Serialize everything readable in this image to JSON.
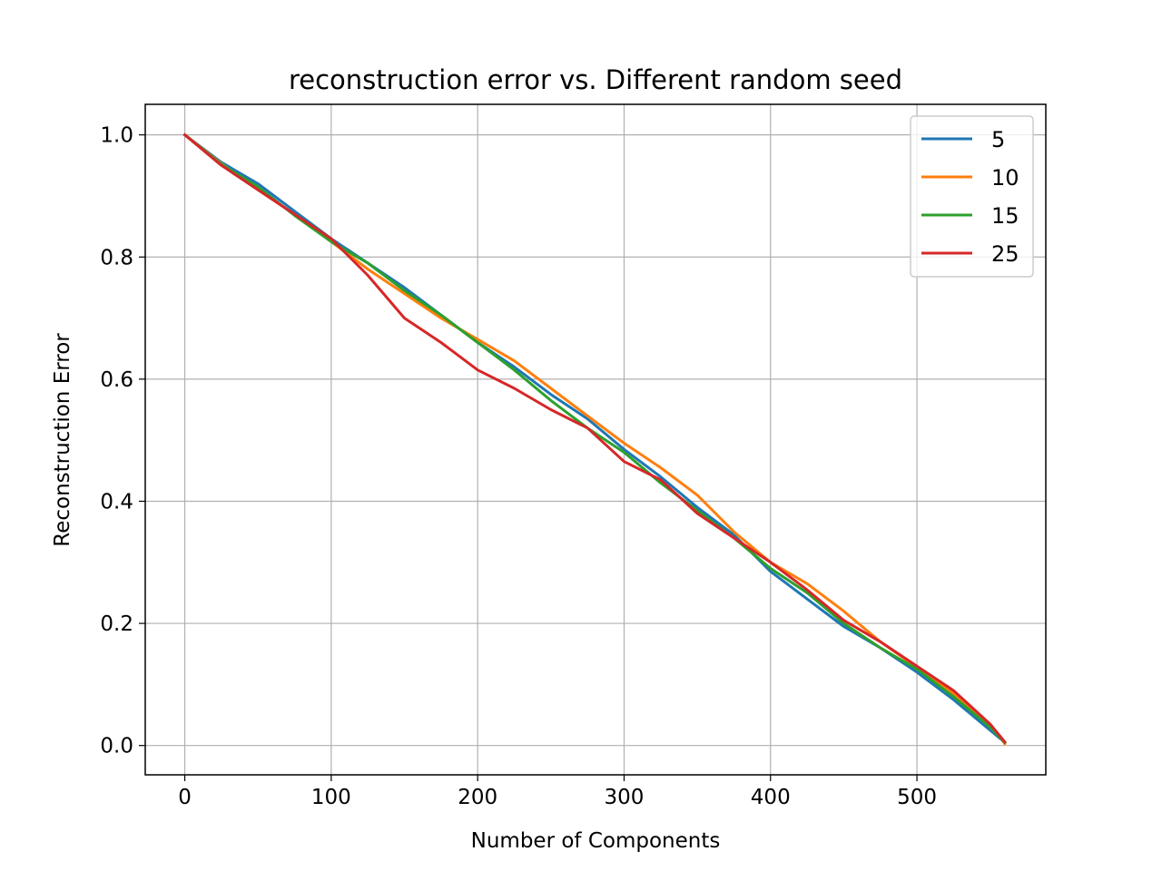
{
  "chart_data": {
    "type": "line",
    "title": "reconstruction error  vs. Different random seed",
    "xlabel": "Number of Components",
    "ylabel": "Reconstruction Error",
    "xlim": [
      -27,
      588
    ],
    "ylim": [
      -0.048,
      1.05
    ],
    "xticks": [
      0,
      100,
      200,
      300,
      400,
      500
    ],
    "yticks": [
      0.0,
      0.2,
      0.4,
      0.6,
      0.8,
      1.0
    ],
    "xtick_labels": [
      "0",
      "100",
      "200",
      "300",
      "400",
      "500"
    ],
    "ytick_labels": [
      "0.0",
      "0.2",
      "0.4",
      "0.6",
      "0.8",
      "1.0"
    ],
    "grid": true,
    "legend_position": "top-right",
    "x": [
      0,
      25,
      50,
      75,
      100,
      125,
      150,
      175,
      200,
      225,
      250,
      275,
      300,
      325,
      350,
      375,
      400,
      425,
      450,
      475,
      500,
      525,
      550,
      560
    ],
    "series": [
      {
        "name": "5",
        "color": "#1f77b4",
        "values": [
          1.0,
          0.955,
          0.92,
          0.875,
          0.83,
          0.79,
          0.75,
          0.705,
          0.66,
          0.62,
          0.575,
          0.535,
          0.485,
          0.44,
          0.39,
          0.345,
          0.285,
          0.24,
          0.195,
          0.16,
          0.12,
          0.075,
          0.025,
          0.005
        ]
      },
      {
        "name": "10",
        "color": "#ff7f0e",
        "values": [
          1.0,
          0.953,
          0.91,
          0.87,
          0.825,
          0.78,
          0.74,
          0.7,
          0.665,
          0.63,
          0.585,
          0.54,
          0.495,
          0.455,
          0.41,
          0.35,
          0.3,
          0.265,
          0.22,
          0.17,
          0.128,
          0.085,
          0.035,
          0.003
        ]
      },
      {
        "name": "15",
        "color": "#2ca02c",
        "values": [
          1.0,
          0.952,
          0.915,
          0.868,
          0.825,
          0.79,
          0.745,
          0.705,
          0.66,
          0.615,
          0.565,
          0.52,
          0.48,
          0.43,
          0.385,
          0.34,
          0.29,
          0.25,
          0.2,
          0.16,
          0.125,
          0.08,
          0.03,
          0.005
        ]
      },
      {
        "name": "25",
        "color": "#d62728",
        "values": [
          1.0,
          0.95,
          0.91,
          0.87,
          0.83,
          0.77,
          0.7,
          0.66,
          0.615,
          0.585,
          0.55,
          0.52,
          0.465,
          0.435,
          0.38,
          0.34,
          0.3,
          0.255,
          0.205,
          0.17,
          0.13,
          0.09,
          0.035,
          0.006
        ]
      }
    ]
  }
}
